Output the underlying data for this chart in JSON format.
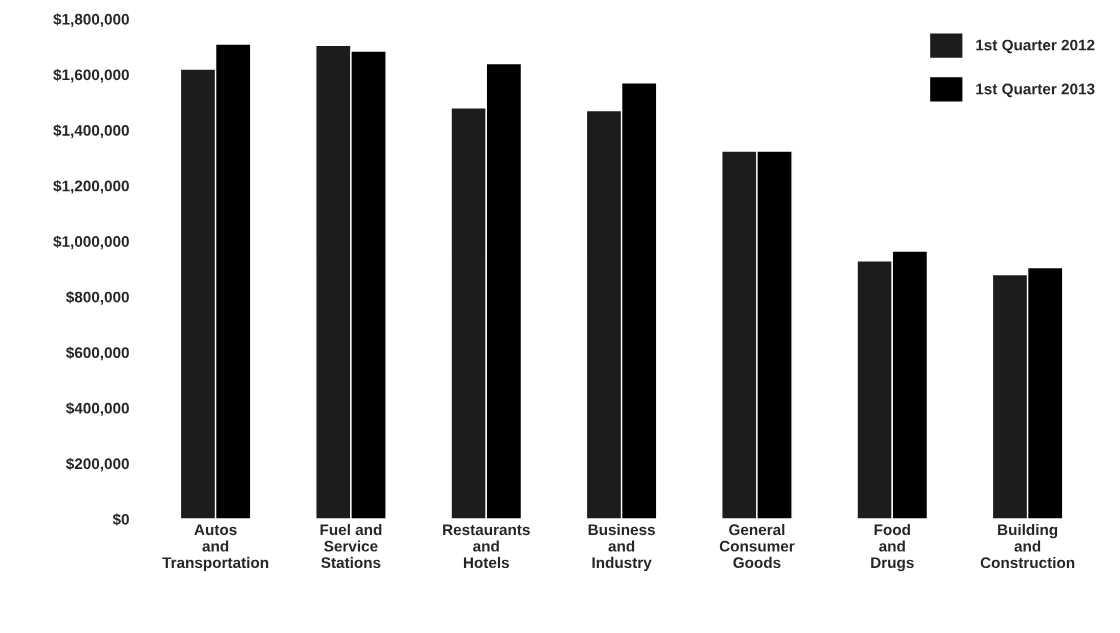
{
  "chart_data": {
    "type": "bar",
    "categories": [
      "Autos\nand\nTransportation",
      "Fuel and\nService\nStations",
      "Restaurants\nand\nHotels",
      "Business\nand\nIndustry",
      "General\nConsumer\nGoods",
      "Food\nand\nDrugs",
      "Building\nand\nConstruction"
    ],
    "series": [
      {
        "name": "1st Quarter 2012",
        "color": "#1c1c1c",
        "values": [
          1620000,
          1705000,
          1480000,
          1470000,
          1325000,
          930000,
          880000
        ]
      },
      {
        "name": "1st Quarter 2013",
        "color": "#000000",
        "values": [
          1710000,
          1685000,
          1640000,
          1570000,
          1325000,
          965000,
          905000
        ]
      }
    ],
    "ylim": [
      0,
      1800000
    ],
    "yticks": [
      {
        "value": 0,
        "label": "$0"
      },
      {
        "value": 200000,
        "label": "$200,000"
      },
      {
        "value": 400000,
        "label": "$400,000"
      },
      {
        "value": 600000,
        "label": "$600,000"
      },
      {
        "value": 800000,
        "label": "$800,000"
      },
      {
        "value": 1000000,
        "label": "$1,000,000"
      },
      {
        "value": 1200000,
        "label": "$1,200,000"
      },
      {
        "value": 1400000,
        "label": "$1,400,000"
      },
      {
        "value": 1600000,
        "label": "$1,600,000"
      },
      {
        "value": 1800000,
        "label": "$1,800,000"
      }
    ],
    "grid": false,
    "legend": "top right"
  }
}
